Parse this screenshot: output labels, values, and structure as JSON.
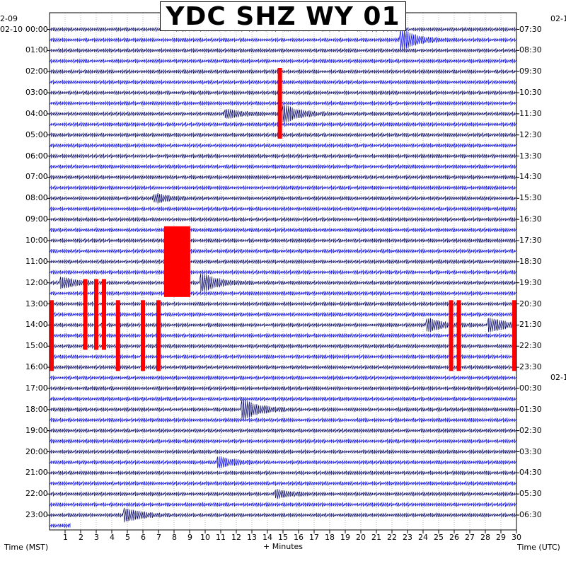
{
  "title": "YDC SHZ WY 01",
  "left_dates": {
    "top": "2-09",
    "second": "02-10"
  },
  "right_dates": {
    "top": "02-1",
    "second": "02-1"
  },
  "colors": {
    "trace_dark": "#000066",
    "trace_blue": "#0000ee",
    "clip": "#ff0000",
    "grid": "#999999"
  },
  "chart_data": {
    "type": "helicorder",
    "title": "YDC SHZ WY 01",
    "xlabel": "+ Minutes",
    "left_axis_label": "Time (MST)",
    "right_axis_label": "Time (UTC)",
    "x_ticks": [
      "1",
      "2",
      "3",
      "4",
      "5",
      "6",
      "7",
      "8",
      "9",
      "10",
      "11",
      "12",
      "13",
      "14",
      "15",
      "16",
      "17",
      "18",
      "19",
      "20",
      "21",
      "22",
      "23",
      "24",
      "25",
      "26",
      "27",
      "28",
      "29",
      "30"
    ],
    "xlim": [
      0,
      30
    ],
    "left_hour_labels": [
      "00:00",
      "01:00",
      "02:00",
      "03:00",
      "04:00",
      "05:00",
      "06:00",
      "07:00",
      "08:00",
      "09:00",
      "10:00",
      "11:00",
      "12:00",
      "13:00",
      "14:00",
      "15:00",
      "16:00",
      "17:00",
      "18:00",
      "19:00",
      "20:00",
      "21:00",
      "22:00",
      "23:00"
    ],
    "right_hour_labels": [
      "07:30",
      "08:30",
      "09:30",
      "10:30",
      "11:30",
      "12:30",
      "13:30",
      "14:30",
      "15:30",
      "16:30",
      "17:30",
      "18:30",
      "19:30",
      "20:30",
      "21:30",
      "22:30",
      "23:30",
      "00:30",
      "01:30",
      "02:30",
      "03:30",
      "04:30",
      "05:30",
      "06:30"
    ],
    "traces_per_hour": 2,
    "last_trace_minutes": 1.4,
    "clipped_events": [
      {
        "hour": 3.5,
        "minute": 14.8
      },
      {
        "hour": 11.0,
        "minute": 8.2
      },
      {
        "hour": 13.5,
        "minute": 2.3
      },
      {
        "hour": 13.5,
        "minute": 3.0
      },
      {
        "hour": 13.5,
        "minute": 3.5
      },
      {
        "hour": 14.5,
        "minute": 0.1
      },
      {
        "hour": 14.5,
        "minute": 4.4
      },
      {
        "hour": 14.5,
        "minute": 6.0
      },
      {
        "hour": 14.5,
        "minute": 7.0
      },
      {
        "hour": 14.5,
        "minute": 25.8
      },
      {
        "hour": 14.5,
        "minute": 26.3
      },
      {
        "hour": 14.5,
        "minute": 30.0
      }
    ],
    "events": [
      {
        "hour": 0.5,
        "minute": 22.8,
        "amp": 4
      },
      {
        "hour": 4.0,
        "minute": 15.2,
        "amp": 3.5
      },
      {
        "hour": 4.0,
        "minute": 11.5,
        "amp": 1.5
      },
      {
        "hour": 8.0,
        "minute": 7.0,
        "amp": 1.5
      },
      {
        "hour": 12.0,
        "minute": 10.0,
        "amp": 3.5
      },
      {
        "hour": 12.0,
        "minute": 1.0,
        "amp": 2
      },
      {
        "hour": 14.0,
        "minute": 24.5,
        "amp": 2.5
      },
      {
        "hour": 14.0,
        "minute": 28.5,
        "amp": 2.5
      },
      {
        "hour": 18.0,
        "minute": 12.6,
        "amp": 4
      },
      {
        "hour": 20.5,
        "minute": 11.0,
        "amp": 2
      },
      {
        "hour": 22.0,
        "minute": 14.7,
        "amp": 1.5
      },
      {
        "hour": 23.0,
        "minute": 5.0,
        "amp": 2.5
      }
    ]
  }
}
